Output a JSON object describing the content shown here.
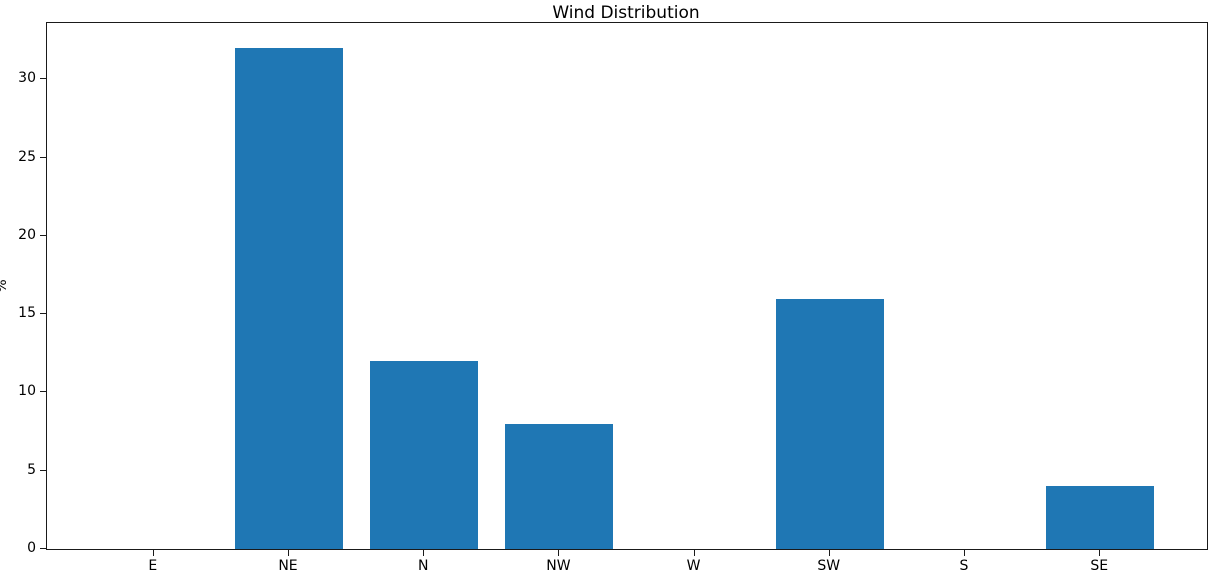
{
  "chart_data": {
    "type": "bar",
    "title": "Wind Distribution",
    "xlabel": "",
    "ylabel": "%",
    "categories": [
      "E",
      "NE",
      "N",
      "NW",
      "W",
      "SW",
      "S",
      "SE"
    ],
    "values": [
      0,
      32,
      12,
      8,
      0,
      16,
      0,
      4
    ],
    "yticks": [
      0,
      5,
      10,
      15,
      20,
      25,
      30
    ],
    "ylim": [
      0,
      33.6
    ],
    "xlim": [
      -0.79,
      7.79
    ],
    "bar_width": 0.8,
    "bar_color": "#1f77b4",
    "spine_color": "#1a1a1a",
    "background_color": "#ffffff",
    "grid": false,
    "legend": null
  }
}
